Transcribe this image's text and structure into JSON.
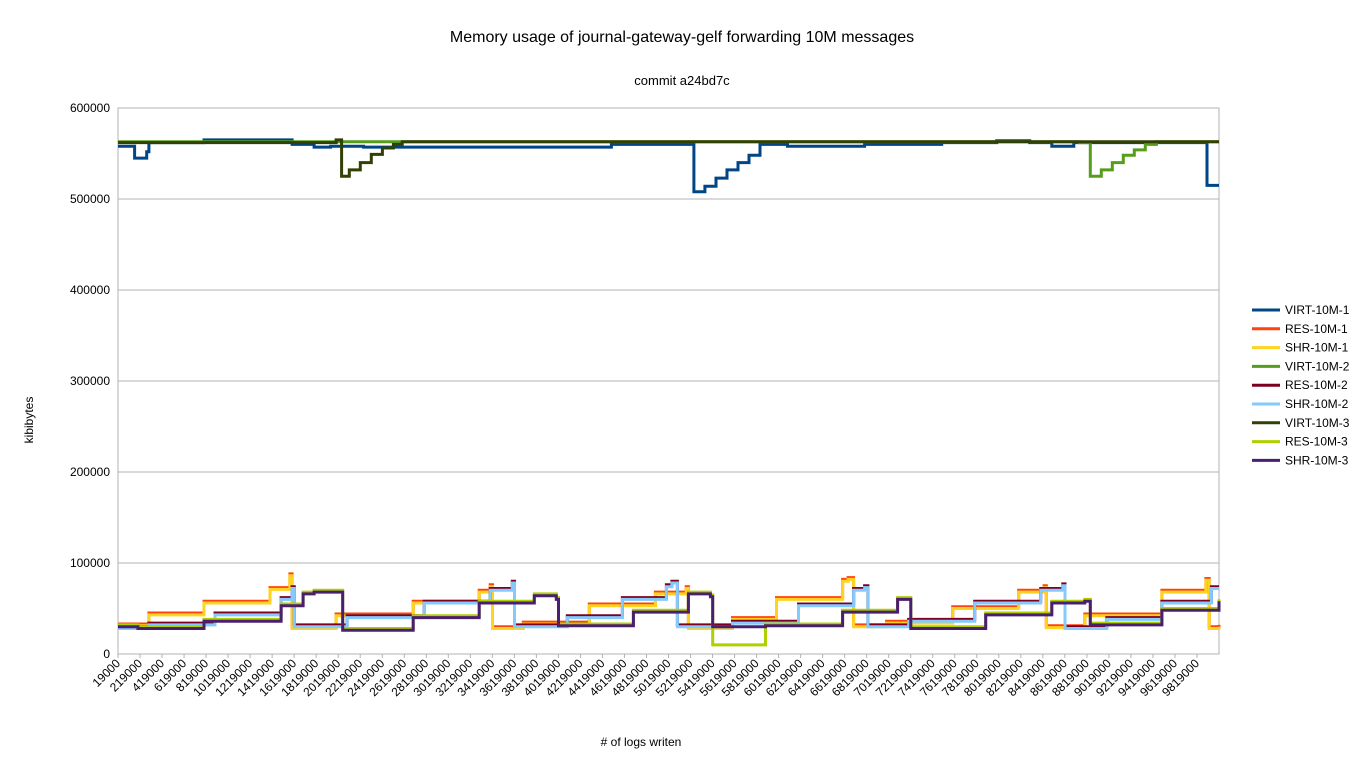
{
  "chart_data": {
    "type": "line",
    "title": "Memory usage of journal-gateway-gelf forwarding 10M messages",
    "subtitle": "commit a24bd7c",
    "xlabel": "# of logs writen",
    "ylabel": "kibibytes",
    "ylim": [
      0,
      600000
    ],
    "xlim": [
      19000,
      10019000
    ],
    "y_ticks": [
      "0",
      "100000",
      "200000",
      "300000",
      "400000",
      "500000",
      "600000"
    ],
    "y_tick_values": [
      0,
      100000,
      200000,
      300000,
      400000,
      500000,
      600000
    ],
    "x_ticks": [
      "19000",
      "219000",
      "419000",
      "619000",
      "819000",
      "1019000",
      "1219000",
      "1419000",
      "1619000",
      "1819000",
      "2019000",
      "2219000",
      "2419000",
      "2619000",
      "2819000",
      "3019000",
      "3219000",
      "3419000",
      "3619000",
      "3819000",
      "4019000",
      "4219000",
      "4419000",
      "4619000",
      "4819000",
      "5019000",
      "5219000",
      "5419000",
      "5619000",
      "5819000",
      "6019000",
      "6219000",
      "6419000",
      "6619000",
      "6819000",
      "7019000",
      "7219000",
      "7419000",
      "7619000",
      "7819000",
      "8019000",
      "8219000",
      "8419000",
      "8619000",
      "8819000",
      "9019000",
      "9219000",
      "9419000",
      "9619000",
      "9819000"
    ],
    "grid": true,
    "legend_position": "right",
    "series": [
      {
        "name": "VIRT-10M-1",
        "color": "#004586",
        "x": [
          19000,
          160000,
          170000,
          280000,
          300000,
          800000,
          1600000,
          1800000,
          1950000,
          2250000,
          2450000,
          3200000,
          4500000,
          4800000,
          5000000,
          5150000,
          5250000,
          5350000,
          5450000,
          5550000,
          5650000,
          5750000,
          5850000,
          6100000,
          6400000,
          6800000,
          7500000,
          8000000,
          8300000,
          8500000,
          8700000,
          9300000,
          9600000,
          9900000,
          9910000,
          10019000
        ],
        "y": [
          558000,
          558000,
          545000,
          552000,
          562000,
          565000,
          560000,
          557000,
          558000,
          557000,
          557000,
          557000,
          560000,
          560000,
          560000,
          560000,
          508000,
          514000,
          523000,
          532000,
          540000,
          548000,
          560000,
          558000,
          558000,
          560000,
          562000,
          564000,
          562000,
          558000,
          562000,
          562000,
          562000,
          562000,
          515000,
          515000
        ]
      },
      {
        "name": "RES-10M-1",
        "color": "#ff420e",
        "x": [
          19000,
          300000,
          800000,
          1400000,
          1580000,
          1600000,
          2000000,
          2700000,
          3300000,
          3400000,
          3420000,
          3700000,
          4300000,
          4900000,
          5180000,
          5200000,
          5600000,
          6000000,
          6600000,
          6650000,
          6700000,
          7000000,
          7600000,
          8200000,
          8430000,
          8450000,
          8800000,
          9500000,
          9900000,
          9930000,
          10019000
        ],
        "y": [
          33000,
          45000,
          58000,
          73000,
          88000,
          30000,
          44000,
          58000,
          70000,
          76000,
          30000,
          35000,
          55000,
          68000,
          74000,
          30000,
          40000,
          62000,
          82000,
          84000,
          32000,
          36000,
          52000,
          70000,
          75000,
          31000,
          44000,
          70000,
          83000,
          30000,
          32000
        ]
      },
      {
        "name": "SHR-10M-1",
        "color": "#ffd320",
        "x": [
          19000,
          300000,
          800000,
          1400000,
          1580000,
          1600000,
          2000000,
          2700000,
          3300000,
          3400000,
          3420000,
          3700000,
          4300000,
          4900000,
          5180000,
          5200000,
          5600000,
          6000000,
          6600000,
          6650000,
          6700000,
          7000000,
          7600000,
          8200000,
          8430000,
          8450000,
          8800000,
          9500000,
          9900000,
          9930000,
          10019000
        ],
        "y": [
          31000,
          43000,
          56000,
          71000,
          86000,
          28000,
          42000,
          56000,
          68000,
          74000,
          28000,
          33000,
          53000,
          66000,
          72000,
          28000,
          38000,
          60000,
          80000,
          82000,
          30000,
          34000,
          50000,
          68000,
          73000,
          29000,
          42000,
          68000,
          81000,
          28000,
          30000
        ]
      },
      {
        "name": "VIRT-10M-2",
        "color": "#579d1c",
        "x": [
          19000,
          600000,
          1500000,
          2500000,
          3500000,
          4500000,
          5500000,
          6500000,
          7500000,
          8500000,
          8750000,
          8850000,
          8950000,
          9050000,
          9150000,
          9250000,
          9350000,
          9450000,
          10019000
        ],
        "y": [
          563000,
          563000,
          563000,
          563000,
          563000,
          563000,
          563000,
          563000,
          563000,
          563000,
          562000,
          525000,
          532000,
          540000,
          548000,
          554000,
          560000,
          563000,
          563000
        ]
      },
      {
        "name": "RES-10M-2",
        "color": "#7e0021",
        "x": [
          19000,
          300000,
          900000,
          1500000,
          1600000,
          1620000,
          2100000,
          2800000,
          3400000,
          3600000,
          3620000,
          4100000,
          4600000,
          5000000,
          5050000,
          5100000,
          5600000,
          6200000,
          6700000,
          6800000,
          6830000,
          7200000,
          7800000,
          8400000,
          8600000,
          8620000,
          9000000,
          9500000,
          9950000,
          10019000
        ],
        "y": [
          30000,
          34000,
          45000,
          62000,
          74000,
          32000,
          42000,
          58000,
          72000,
          80000,
          32000,
          42000,
          62000,
          76000,
          80000,
          32000,
          36000,
          55000,
          72000,
          75000,
          32000,
          38000,
          58000,
          72000,
          77000,
          30000,
          40000,
          58000,
          74000,
          74000
        ]
      },
      {
        "name": "SHR-10M-2",
        "color": "#83caff",
        "x": [
          19000,
          300000,
          900000,
          1500000,
          1600000,
          1620000,
          2100000,
          2800000,
          3400000,
          3600000,
          3620000,
          4100000,
          4600000,
          5000000,
          5050000,
          5100000,
          5600000,
          6200000,
          6700000,
          6800000,
          6830000,
          7200000,
          7800000,
          8400000,
          8600000,
          8620000,
          9000000,
          9500000,
          9950000,
          10019000
        ],
        "y": [
          28000,
          32000,
          43000,
          60000,
          72000,
          30000,
          40000,
          56000,
          70000,
          78000,
          30000,
          40000,
          60000,
          74000,
          78000,
          30000,
          34000,
          53000,
          70000,
          73000,
          30000,
          36000,
          56000,
          70000,
          75000,
          28000,
          38000,
          56000,
          72000,
          72000
        ]
      },
      {
        "name": "VIRT-10M-3",
        "color": "#314004",
        "x": [
          19000,
          1500000,
          2000000,
          2050000,
          2120000,
          2220000,
          2320000,
          2420000,
          2520000,
          2600000,
          4000000,
          6000000,
          8000000,
          10019000
        ],
        "y": [
          562000,
          562000,
          565000,
          525000,
          532000,
          540000,
          549000,
          556000,
          560000,
          563000,
          563000,
          563000,
          563000,
          563000
        ]
      },
      {
        "name": "RES-10M-3",
        "color": "#aecf00",
        "x": [
          19000,
          200000,
          800000,
          1500000,
          1700000,
          1800000,
          2050000,
          2060000,
          2700000,
          3300000,
          3800000,
          4000000,
          4020000,
          4700000,
          5200000,
          5400000,
          5420000,
          5900000,
          6600000,
          7100000,
          7200000,
          7220000,
          7900000,
          8500000,
          8800000,
          8850000,
          9500000,
          10019000
        ],
        "y": [
          32000,
          30000,
          38000,
          55000,
          68000,
          70000,
          70000,
          28000,
          42000,
          58000,
          66000,
          62000,
          33000,
          48000,
          68000,
          65000,
          10000,
          33000,
          48000,
          62000,
          62000,
          30000,
          45000,
          58000,
          60000,
          34000,
          50000,
          60000
        ]
      },
      {
        "name": "SHR-10M-3",
        "color": "#4b1f6f",
        "x": [
          19000,
          200000,
          800000,
          1500000,
          1700000,
          1800000,
          2050000,
          2060000,
          2700000,
          3300000,
          3800000,
          4000000,
          4020000,
          4700000,
          5200000,
          5400000,
          5420000,
          5900000,
          6600000,
          7100000,
          7200000,
          7220000,
          7900000,
          8500000,
          8800000,
          8850000,
          9500000,
          10019000
        ],
        "y": [
          30000,
          28000,
          36000,
          53000,
          66000,
          68000,
          68000,
          26000,
          40000,
          56000,
          64000,
          60000,
          31000,
          46000,
          66000,
          63000,
          30000,
          31000,
          46000,
          60000,
          60000,
          28000,
          43000,
          56000,
          58000,
          32000,
          48000,
          58000
        ]
      }
    ]
  }
}
